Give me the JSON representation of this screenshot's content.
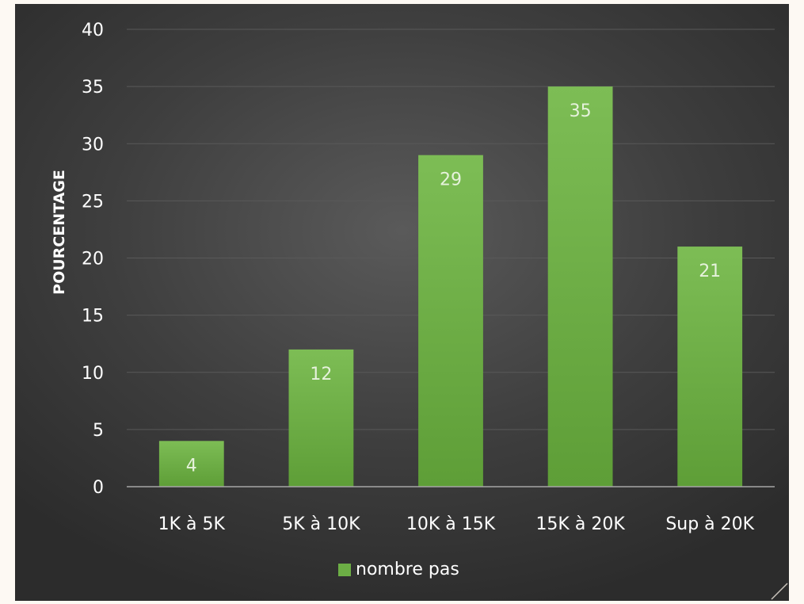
{
  "chart_data": {
    "type": "bar",
    "categories": [
      "1K à 5K",
      "5K à 10K",
      "10K à 15K",
      "15K à 20K",
      "Sup à 20K"
    ],
    "series": [
      {
        "name": "nombre pas",
        "values": [
          4,
          12,
          29,
          35,
          21
        ]
      }
    ],
    "ylabel": "POURCENTAGE",
    "ylim": [
      0,
      40
    ],
    "yticks": [
      0,
      5,
      10,
      15,
      20,
      25,
      30,
      35,
      40
    ],
    "grid": true,
    "legend": "bottom",
    "colors": {
      "bar": "#6cae45",
      "bar_light": "#7fbf56",
      "background": "#3e3e3e",
      "text": "#ffffff",
      "grid": "#595959"
    }
  }
}
